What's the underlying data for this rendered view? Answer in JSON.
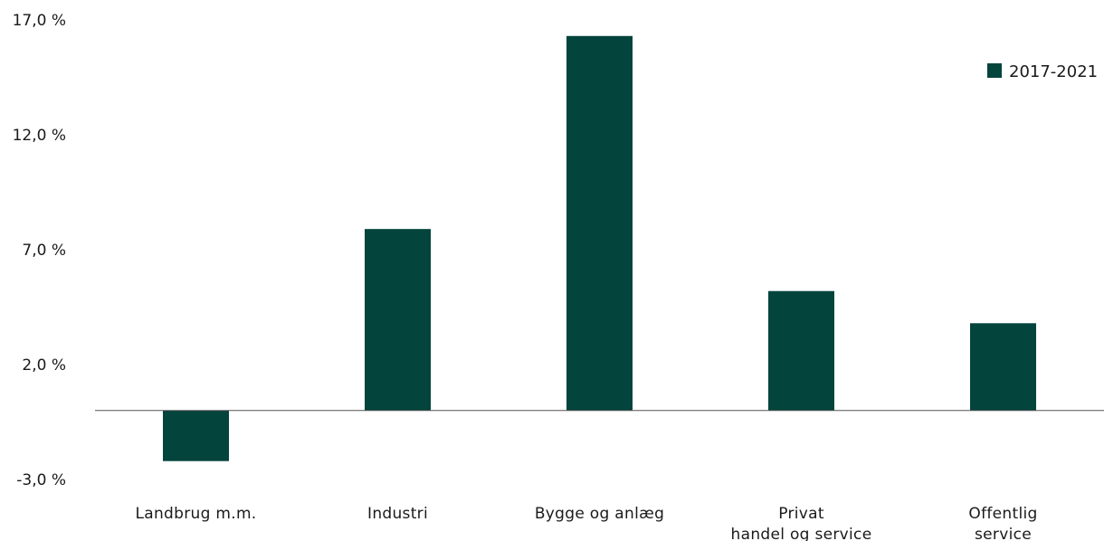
{
  "chart_data": {
    "type": "bar",
    "categories": [
      [
        "Landbrug m.m."
      ],
      [
        "Industri"
      ],
      [
        "Bygge og anlæg"
      ],
      [
        "Privat",
        "handel og service"
      ],
      [
        "Offentlig",
        "service"
      ]
    ],
    "series": [
      {
        "name": "2017-2021",
        "values": [
          -2.2,
          7.9,
          16.3,
          5.2,
          3.8
        ],
        "color": "#03443C"
      }
    ],
    "y_ticks": [
      "17,0 %",
      "12,0 %",
      "7,0 %",
      "2,0 %",
      "-3,0 %"
    ],
    "y_tick_values": [
      17,
      12,
      7,
      2,
      -3
    ],
    "ylim": [
      -3,
      17
    ],
    "grid": false,
    "legend_position": "top-right",
    "zero_line": true
  }
}
